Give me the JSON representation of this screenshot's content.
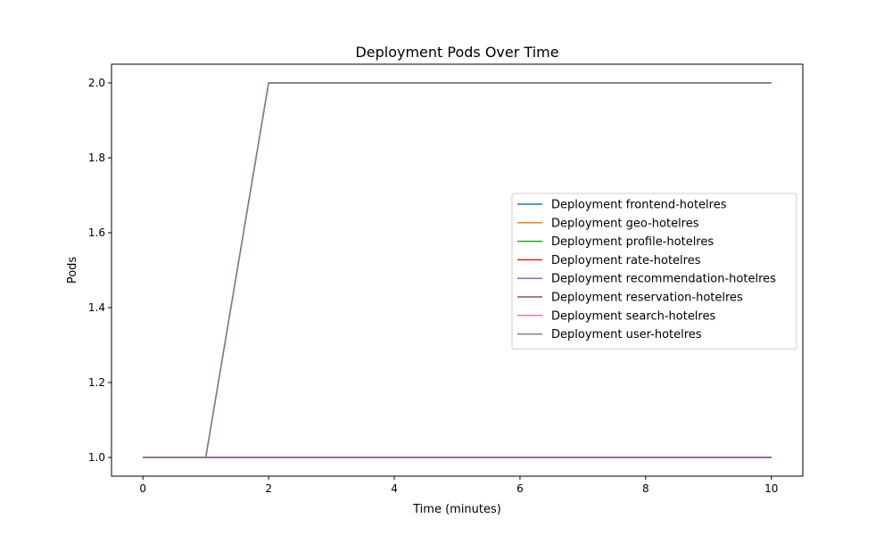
{
  "chart_data": {
    "type": "line",
    "title": "Deployment Pods Over Time",
    "xlabel": "Time (minutes)",
    "ylabel": "Pods",
    "xlim": [
      -0.5,
      10.5
    ],
    "ylim": [
      0.95,
      2.05
    ],
    "xticks": [
      0,
      2,
      4,
      6,
      8,
      10
    ],
    "xtick_labels": [
      "0",
      "2",
      "4",
      "6",
      "8",
      "10"
    ],
    "yticks": [
      1.0,
      1.2,
      1.4,
      1.6,
      1.8,
      2.0
    ],
    "ytick_labels": [
      "1.0",
      "1.2",
      "1.4",
      "1.6",
      "1.8",
      "2.0"
    ],
    "grid": false,
    "legend_position": "center-right",
    "x": [
      0,
      1,
      2,
      3,
      4,
      5,
      6,
      7,
      8,
      9,
      10
    ],
    "series": [
      {
        "name": "Deployment frontend-hotelres",
        "color": "#1f77b4",
        "values": [
          1,
          1,
          1,
          1,
          1,
          1,
          1,
          1,
          1,
          1,
          1
        ]
      },
      {
        "name": "Deployment geo-hotelres",
        "color": "#ff7f0e",
        "values": [
          1,
          1,
          1,
          1,
          1,
          1,
          1,
          1,
          1,
          1,
          1
        ]
      },
      {
        "name": "Deployment profile-hotelres",
        "color": "#2ca02c",
        "values": [
          1,
          1,
          1,
          1,
          1,
          1,
          1,
          1,
          1,
          1,
          1
        ]
      },
      {
        "name": "Deployment rate-hotelres",
        "color": "#d62728",
        "values": [
          1,
          1,
          1,
          1,
          1,
          1,
          1,
          1,
          1,
          1,
          1
        ]
      },
      {
        "name": "Deployment recommendation-hotelres",
        "color": "#9467bd",
        "values": [
          1,
          1,
          1,
          1,
          1,
          1,
          1,
          1,
          1,
          1,
          1
        ]
      },
      {
        "name": "Deployment reservation-hotelres",
        "color": "#8c564b",
        "values": [
          1,
          1,
          2,
          2,
          2,
          2,
          2,
          2,
          2,
          2,
          2
        ]
      },
      {
        "name": "Deployment search-hotelres",
        "color": "#e377c2",
        "values": [
          1,
          1,
          2,
          2,
          2,
          2,
          2,
          2,
          2,
          2,
          2
        ]
      },
      {
        "name": "Deployment user-hotelres",
        "color": "#7f7f7f",
        "values": [
          1,
          1,
          2,
          2,
          2,
          2,
          2,
          2,
          2,
          2,
          2
        ]
      }
    ]
  }
}
